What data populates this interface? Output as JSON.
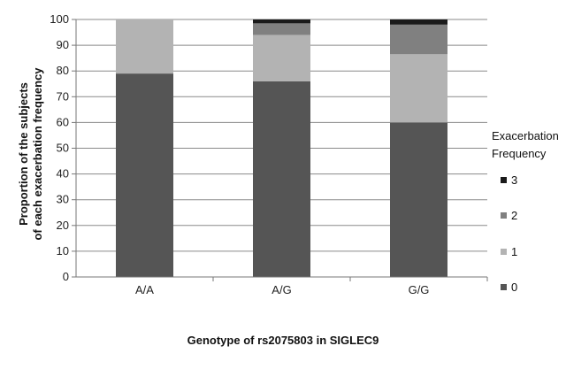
{
  "chart_data": {
    "type": "bar",
    "stacked": true,
    "categories": [
      "A/A",
      "A/G",
      "G/G"
    ],
    "series": [
      {
        "name": "0",
        "values": [
          79,
          76,
          60
        ],
        "color": "#555555"
      },
      {
        "name": "1",
        "values": [
          21,
          18,
          26.5
        ],
        "color": "#b3b3b3"
      },
      {
        "name": "2",
        "values": [
          0,
          4.5,
          11.5
        ],
        "color": "#808080"
      },
      {
        "name": "3",
        "values": [
          0,
          1.5,
          2
        ],
        "color": "#1a1a1a"
      }
    ],
    "xlabel": "Genotype of rs2075803 in SIGLEC9",
    "ylabel_line1": "Proportion of the subjects",
    "ylabel_line2": "of each exacerbation frequency",
    "ylim": [
      0,
      100
    ],
    "yticks": [
      0,
      10,
      20,
      30,
      40,
      50,
      60,
      70,
      80,
      90,
      100
    ],
    "grid": true,
    "legend": {
      "title_line1": "Exacerbation",
      "title_line2": "Frequency",
      "placement": "right",
      "order": [
        "3",
        "2",
        "1",
        "0"
      ]
    }
  }
}
